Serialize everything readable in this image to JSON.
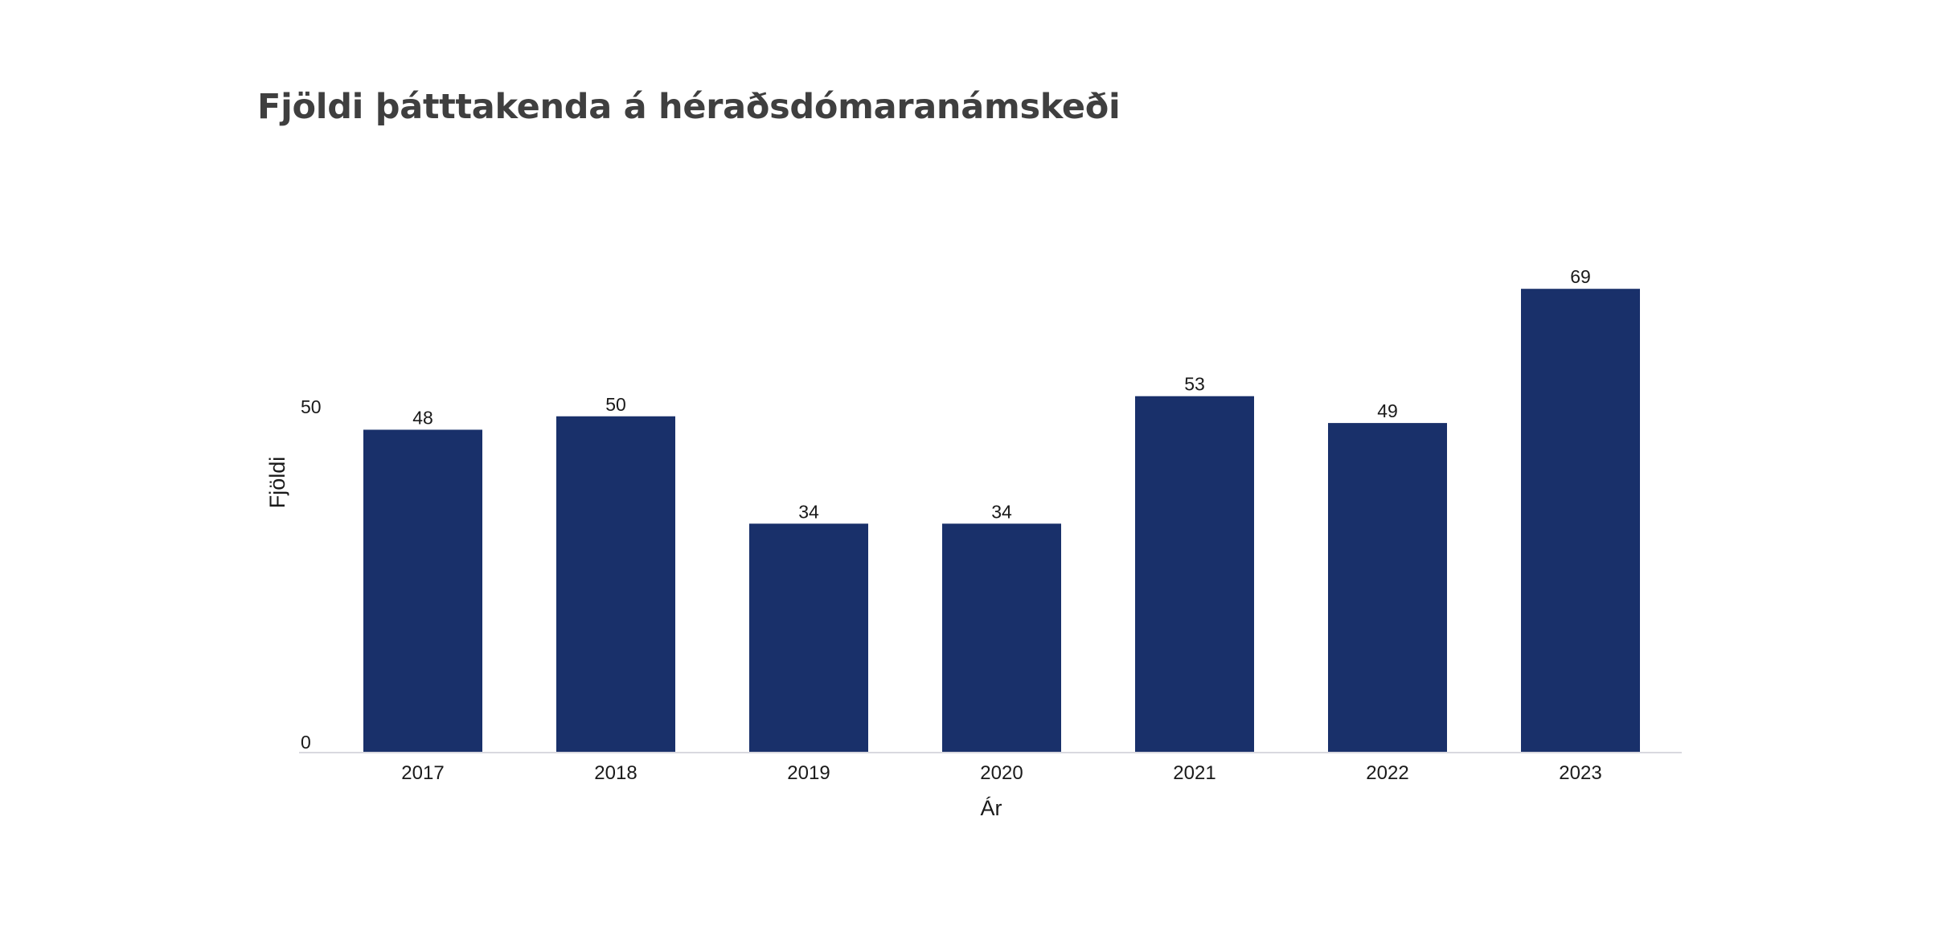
{
  "chart_data": {
    "type": "bar",
    "title": "Fjöldi þátttakenda á héraðsdómaranámskeði",
    "xlabel": "Ár",
    "ylabel": "Fjöldi",
    "categories": [
      "2017",
      "2018",
      "2019",
      "2020",
      "2021",
      "2022",
      "2023"
    ],
    "values": [
      48,
      50,
      34,
      34,
      53,
      49,
      69
    ],
    "ylim": [
      0,
      72.5
    ],
    "yticks": [
      0,
      50
    ],
    "data_labels": true,
    "grid": false,
    "bar_color": "#19306a",
    "axis_line_color": "#d9d9df"
  }
}
